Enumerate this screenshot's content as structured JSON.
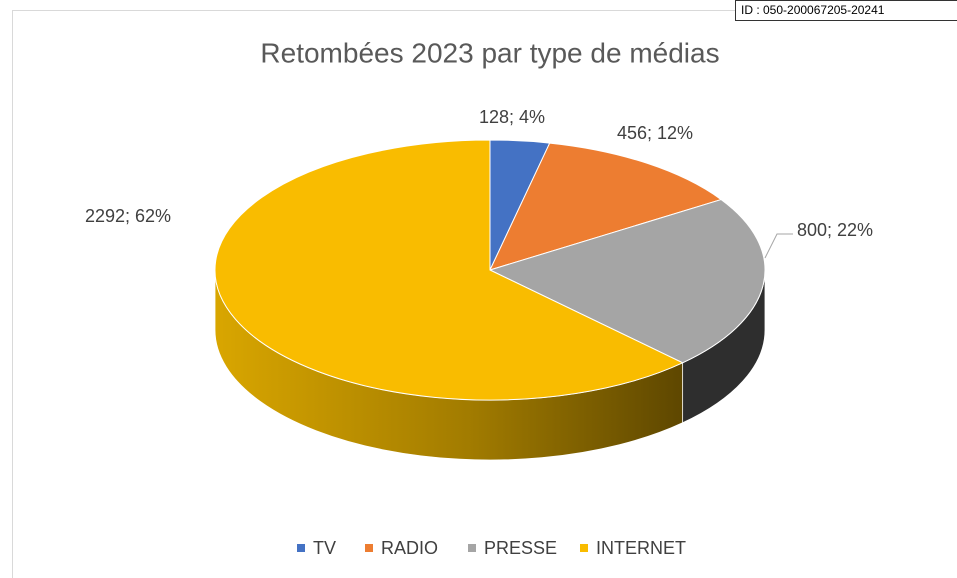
{
  "stamp": "ID : 050-200067205-20241",
  "chart_data": {
    "type": "pie3d",
    "title": "Retombées 2023 par type de médias",
    "categories": [
      "TV",
      "RADIO",
      "PRESSE",
      "INTERNET"
    ],
    "values": [
      128,
      456,
      800,
      2292
    ],
    "value_labels": [
      "128; 4%",
      "456; 12%",
      "800; 22%",
      "2292; 62%"
    ],
    "colors": [
      "#4472c4",
      "#ed7d31",
      "#a5a5a5",
      "#f9bc00"
    ],
    "legend": "bottom"
  }
}
